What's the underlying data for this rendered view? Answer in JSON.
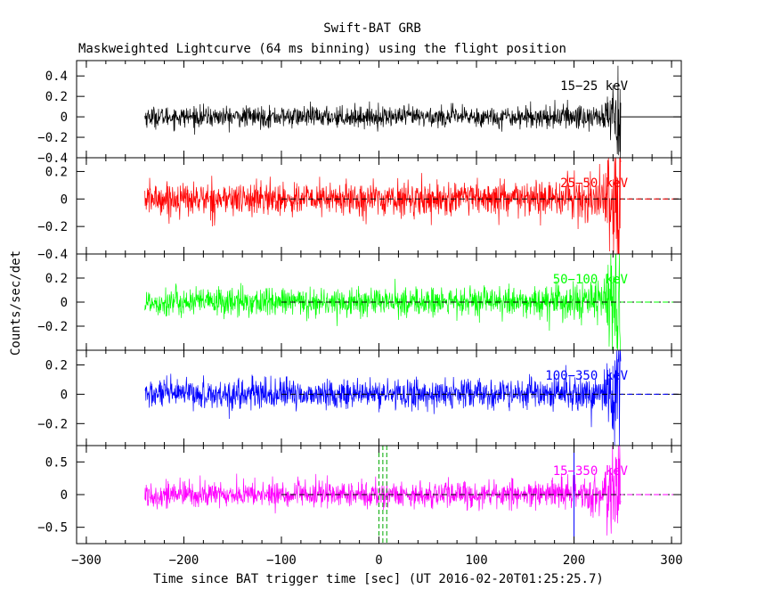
{
  "title": "Swift-BAT GRB",
  "subtitle": "Maskweighted Lightcurve (64 ms binning) using the flight position",
  "chart_data": {
    "type": "line",
    "title": "Swift-BAT GRB",
    "subtitle": "Maskweighted Lightcurve (64 ms binning) using the flight position",
    "xlabel": "Time since BAT trigger time [sec] (UT 2016-02-20T01:25:25.7)",
    "ylabel": "Counts/sec/det",
    "xlim": [
      -310,
      310
    ],
    "x_ticks": [
      -300,
      -200,
      -100,
      0,
      100,
      200,
      300
    ],
    "grid": false,
    "data_range": [
      -240,
      248
    ],
    "panels": [
      {
        "name": "15-25 keV",
        "label": "15−25 keV",
        "color": "#000000",
        "ylim": [
          -0.4,
          0.55
        ],
        "y_ticks": [
          0.4,
          0.2,
          0,
          -0.2,
          -0.4
        ],
        "y_tick_labels": [
          "0.4",
          "0.2",
          "0",
          "−0.2",
          "−0.4"
        ],
        "noise_sigma": 0.05,
        "peak_amplitude": 0.5,
        "zero_line_style": "solid"
      },
      {
        "name": "25-50 keV",
        "label": "25−50 keV",
        "color": "#ff0000",
        "ylim": [
          -0.4,
          0.3
        ],
        "y_ticks": [
          0.2,
          0,
          -0.2,
          -0.4
        ],
        "y_tick_labels": [
          "0.2",
          "0",
          "−0.2",
          "−0.4"
        ],
        "noise_sigma": 0.06,
        "peak_amplitude": 0.3,
        "zero_line_style": "dashed"
      },
      {
        "name": "50-100 keV",
        "label": "50−100 keV",
        "color": "#00ff00",
        "ylim": [
          -0.4,
          0.4
        ],
        "y_ticks": [
          0.2,
          0,
          -0.2
        ],
        "y_tick_labels": [
          "0.2",
          "0",
          "−0.2"
        ],
        "noise_sigma": 0.06,
        "peak_amplitude": 0.4,
        "zero_line_style": "dashed"
      },
      {
        "name": "100-350 keV",
        "label": "100−350 keV",
        "color": "#0000ff",
        "ylim": [
          -0.35,
          0.3
        ],
        "y_ticks": [
          0.2,
          0,
          -0.2
        ],
        "y_tick_labels": [
          "0.2",
          "0",
          "−0.2"
        ],
        "noise_sigma": 0.05,
        "peak_amplitude": 0.3,
        "zero_line_style": "dashed"
      },
      {
        "name": "15-350 keV",
        "label": "15−350 keV",
        "color": "#ff00ff",
        "ylim": [
          -0.75,
          0.75
        ],
        "y_ticks": [
          0.5,
          0,
          -0.5
        ],
        "y_tick_labels": [
          "0.5",
          "0",
          "−0.5"
        ],
        "noise_sigma": 0.1,
        "peak_amplitude": 0.75,
        "zero_line_style": "dashed"
      }
    ],
    "markers": [
      {
        "x": 0,
        "style": "dashed",
        "color": "#00aa00",
        "panel": "15-350 keV"
      },
      {
        "x": 4,
        "style": "dashed",
        "color": "#00aa00",
        "panel": "15-350 keV"
      },
      {
        "x": 8,
        "style": "dashed",
        "color": "#00aa00",
        "panel": "15-350 keV"
      },
      {
        "x": 200,
        "style": "solid",
        "color": "#0000ff",
        "panel": "15-350 keV"
      }
    ]
  }
}
